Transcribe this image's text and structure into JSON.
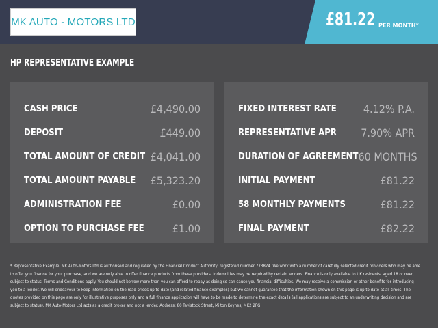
{
  "header": {
    "logo_text": "MK AUTO - MOTORS LTD",
    "monthly_price": "£81.22",
    "per_month_label": "PER MONTH*"
  },
  "section_title": "HP REPRESENTATIVE EXAMPLE",
  "left_panel": [
    {
      "label": "CASH PRICE",
      "value": "£4,490.00"
    },
    {
      "label": "DEPOSIT",
      "value": "£449.00"
    },
    {
      "label": "TOTAL AMOUNT OF CREDIT",
      "value": "£4,041.00"
    },
    {
      "label": "TOTAL AMOUNT PAYABLE",
      "value": "£5,323.20"
    },
    {
      "label": "ADMINISTRATION FEE",
      "value": "£0.00"
    },
    {
      "label": "OPTION TO PURCHASE FEE",
      "value": "£1.00"
    }
  ],
  "right_panel": [
    {
      "label": "FIXED INTEREST RATE",
      "value": "4.12% P.A."
    },
    {
      "label": "REPRESENTATIVE APR",
      "value": "7.90% APR"
    },
    {
      "label": "DURATION OF AGREEMENT",
      "value": "60 MONTHS"
    },
    {
      "label": "INITIAL PAYMENT",
      "value": "£81.22"
    },
    {
      "label": "58 MONTHLY PAYMENTS",
      "value": "£81.22"
    },
    {
      "label": "FINAL PAYMENT",
      "value": "£82.22"
    }
  ],
  "footer": "* Representative Example. MK Auto-Motors Ltd is authorised and regulated by the Financial Conduct Authority, registered number 773874. We work with a number of carefully selected credit providers who may be able to offer you finance for your purchase, and we are only able to offer finance products from these providers. Indemnities may be required by certain lenders. Finance is only available to UK residents, aged 18 or over, subject to status. Terms and Conditions apply. You should not borrow more than you can afford to repay as doing so can cause you financial difficulties. We may receive a commission or other benefits for introducing you to a lender. We will endeavour to keep information on the road prices up to date (and related finance examples) but we cannot guarantee that the information shown on this page is up to date at all times. The quotes provided on this page are only for illustrative purposes only and a full finance application will have to be made to determine the exact details (all applications are subject to an underwriting decision and are subject to status). MK Auto-Motors Ltd acts as a credit broker and not a lender. Address: 80 Tavistock Street, Milton Keynes, MK2 2PG"
}
